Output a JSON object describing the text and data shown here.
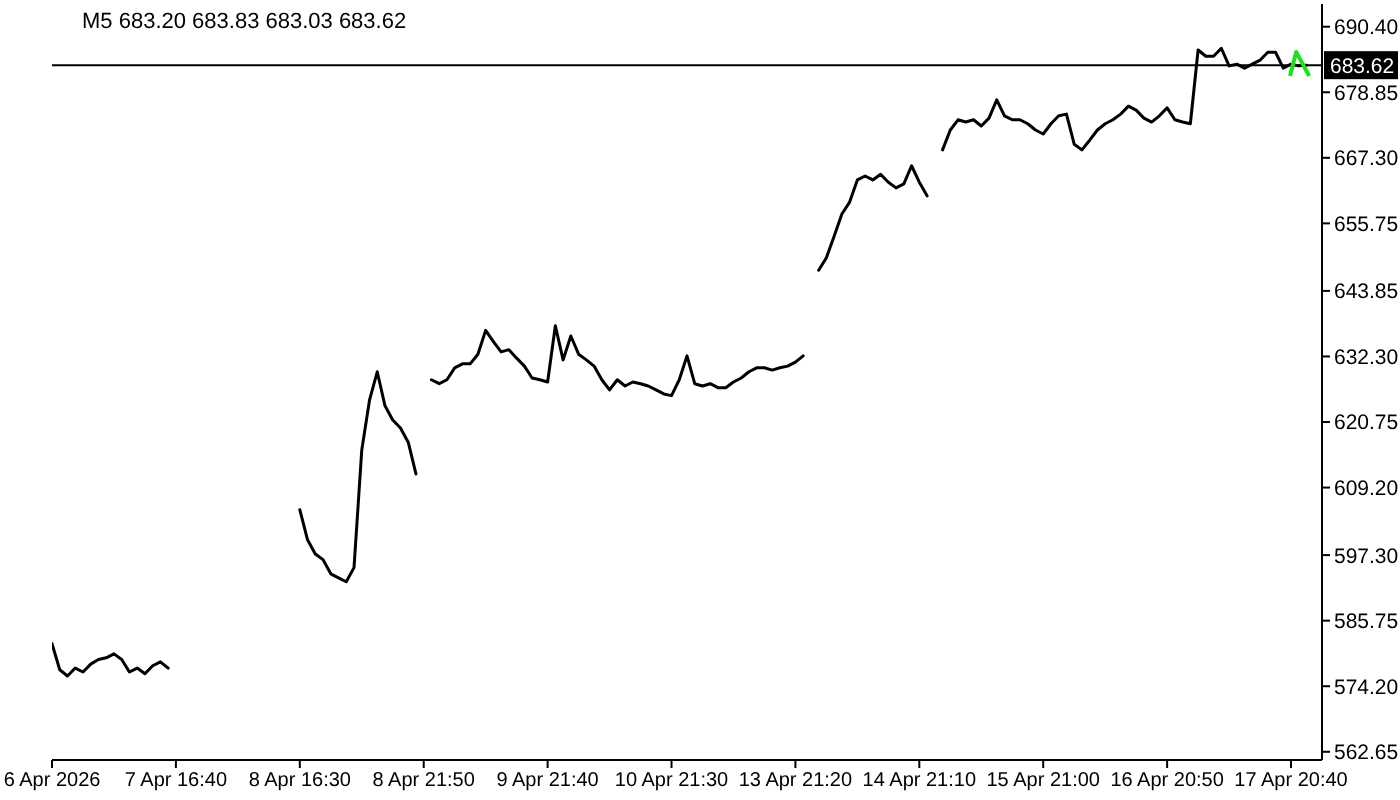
{
  "chart_data": {
    "type": "line",
    "title": "M5 683.20 683.83 683.03 683.62",
    "categories": [
      "6 Apr 2026",
      null,
      null,
      null,
      null,
      null,
      null,
      null,
      null,
      null,
      null,
      null,
      null,
      null,
      null,
      null,
      "7 Apr 16:40",
      null,
      null,
      null,
      null,
      null,
      null,
      null,
      null,
      null,
      null,
      null,
      null,
      null,
      null,
      null,
      "8 Apr 16:30",
      null,
      null,
      null,
      null,
      null,
      null,
      null,
      null,
      null,
      null,
      null,
      null,
      null,
      null,
      null,
      "8 Apr 21:50",
      null,
      null,
      null,
      null,
      null,
      null,
      null,
      null,
      null,
      null,
      null,
      null,
      null,
      null,
      null,
      "9 Apr 21:40",
      null,
      null,
      null,
      null,
      null,
      null,
      null,
      null,
      null,
      null,
      null,
      null,
      null,
      null,
      null,
      "10 Apr 21:30",
      null,
      null,
      null,
      null,
      null,
      null,
      null,
      null,
      null,
      null,
      null,
      null,
      null,
      null,
      null,
      "13 Apr 21:20",
      null,
      null,
      null,
      null,
      null,
      null,
      null,
      null,
      null,
      null,
      null,
      null,
      null,
      null,
      null,
      "14 Apr 21:10",
      null,
      null,
      null,
      null,
      null,
      null,
      null,
      null,
      null,
      null,
      null,
      null,
      null,
      null,
      null,
      "15 Apr 21:00",
      null,
      null,
      null,
      null,
      null,
      null,
      null,
      null,
      null,
      null,
      null,
      null,
      null,
      null,
      null,
      "16 Apr 20:50",
      null,
      null,
      null,
      null,
      null,
      null,
      null,
      null,
      null,
      null,
      null,
      null,
      null,
      null,
      null,
      "17 Apr 20:40",
      null,
      null,
      null,
      null
    ],
    "values": [
      581.7,
      577.1,
      576.0,
      577.4,
      576.7,
      578.1,
      578.9,
      579.2,
      579.9,
      578.9,
      576.7,
      577.4,
      576.4,
      577.8,
      578.5,
      577.4,
      null,
      null,
      null,
      null,
      null,
      null,
      null,
      null,
      null,
      null,
      null,
      null,
      null,
      null,
      null,
      null,
      605.3,
      600.0,
      597.5,
      596.5,
      594.0,
      593.3,
      592.6,
      595.1,
      615.8,
      624.6,
      629.6,
      623.6,
      621.1,
      619.7,
      617.2,
      611.6,
      null,
      628.2,
      627.5,
      628.2,
      630.3,
      631.0,
      631.0,
      632.7,
      636.9,
      634.9,
      633.1,
      633.5,
      632.0,
      630.6,
      628.5,
      628.2,
      627.8,
      637.7,
      631.7,
      635.9,
      632.7,
      631.7,
      630.6,
      628.2,
      626.4,
      628.2,
      627.1,
      627.8,
      627.5,
      627.1,
      626.4,
      625.7,
      625.4,
      628.2,
      632.4,
      627.5,
      627.1,
      627.5,
      626.8,
      626.8,
      627.8,
      628.5,
      629.6,
      630.3,
      630.3,
      629.9,
      630.3,
      630.6,
      631.3,
      632.4,
      null,
      647.5,
      649.7,
      653.5,
      657.4,
      659.5,
      663.4,
      664.1,
      663.4,
      664.4,
      663.0,
      662.0,
      662.7,
      665.9,
      663.0,
      660.6,
      null,
      668.7,
      672.2,
      674.0,
      673.6,
      674.0,
      672.9,
      674.3,
      677.5,
      674.7,
      674.0,
      674.0,
      673.3,
      672.2,
      671.5,
      673.3,
      674.7,
      675.0,
      669.7,
      668.7,
      670.4,
      672.2,
      673.3,
      674.0,
      675.0,
      676.4,
      675.7,
      674.3,
      673.6,
      674.7,
      676.1,
      674.0,
      673.6,
      673.3,
      686.3,
      685.2,
      685.2,
      686.6,
      683.5,
      683.8,
      683.1,
      683.8,
      684.5,
      685.9,
      685.9,
      683.1,
      683.8,
      683.5,
      683.6,
      null,
      null
    ],
    "color": "#000000",
    "marker": "none",
    "ylim": [
      561.2,
      694.4
    ],
    "yticks": [
      {
        "value": 562.65,
        "label": "562.65"
      },
      {
        "value": 574.2,
        "label": "574.20"
      },
      {
        "value": 585.75,
        "label": "585.75"
      },
      {
        "value": 597.3,
        "label": "597.30"
      },
      {
        "value": 609.2,
        "label": "609.20"
      },
      {
        "value": 620.75,
        "label": "620.75"
      },
      {
        "value": 632.3,
        "label": "632.30"
      },
      {
        "value": 643.85,
        "label": "643.85"
      },
      {
        "value": 655.75,
        "label": "655.75"
      },
      {
        "value": 667.3,
        "label": "667.30"
      },
      {
        "value": 678.85,
        "label": "678.85"
      },
      {
        "value": 690.4,
        "label": "690.40"
      }
    ],
    "ref_lines": [
      {
        "axis": "y",
        "value": 683.62,
        "label": "683.62",
        "color": "#000000"
      }
    ]
  }
}
